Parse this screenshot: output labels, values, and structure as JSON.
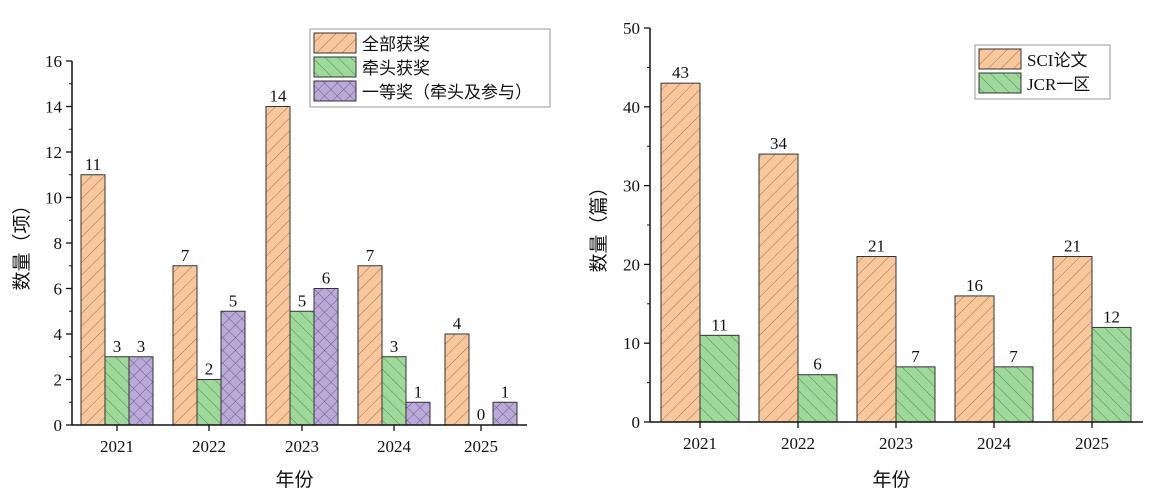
{
  "colors": {
    "orange": "#F8C79B",
    "green": "#9FD89B",
    "purple": "#BBAAD8"
  },
  "chart_data": [
    {
      "type": "bar",
      "title": "",
      "xlabel": "年份",
      "ylabel": "数量（项）",
      "ylim": [
        0,
        16
      ],
      "yticks": [
        0,
        2,
        4,
        6,
        8,
        10,
        12,
        14,
        16
      ],
      "categories": [
        "2021",
        "2022",
        "2023",
        "2024",
        "2025"
      ],
      "legend_position": "top-right",
      "series": [
        {
          "name": "全部获奖",
          "values": [
            11,
            7,
            14,
            7,
            4
          ],
          "color": "orange",
          "pattern": "diag-up"
        },
        {
          "name": "牵头获奖",
          "values": [
            3,
            2,
            5,
            3,
            0
          ],
          "color": "green",
          "pattern": "diag-down"
        },
        {
          "name": "一等奖（牵头及参与）",
          "values": [
            3,
            5,
            6,
            1,
            1
          ],
          "color": "purple",
          "pattern": "cross"
        }
      ]
    },
    {
      "type": "bar",
      "title": "",
      "xlabel": "年份",
      "ylabel": "数量（篇）",
      "ylim": [
        0,
        50
      ],
      "yticks": [
        0,
        10,
        20,
        30,
        40,
        50
      ],
      "categories": [
        "2021",
        "2022",
        "2023",
        "2024",
        "2025"
      ],
      "legend_position": "top-right",
      "series": [
        {
          "name": "SCI论文",
          "values": [
            43,
            34,
            21,
            16,
            21
          ],
          "color": "orange",
          "pattern": "diag-up"
        },
        {
          "name": "JCR一区",
          "values": [
            11,
            6,
            7,
            7,
            12
          ],
          "color": "green",
          "pattern": "diag-down"
        }
      ]
    }
  ]
}
